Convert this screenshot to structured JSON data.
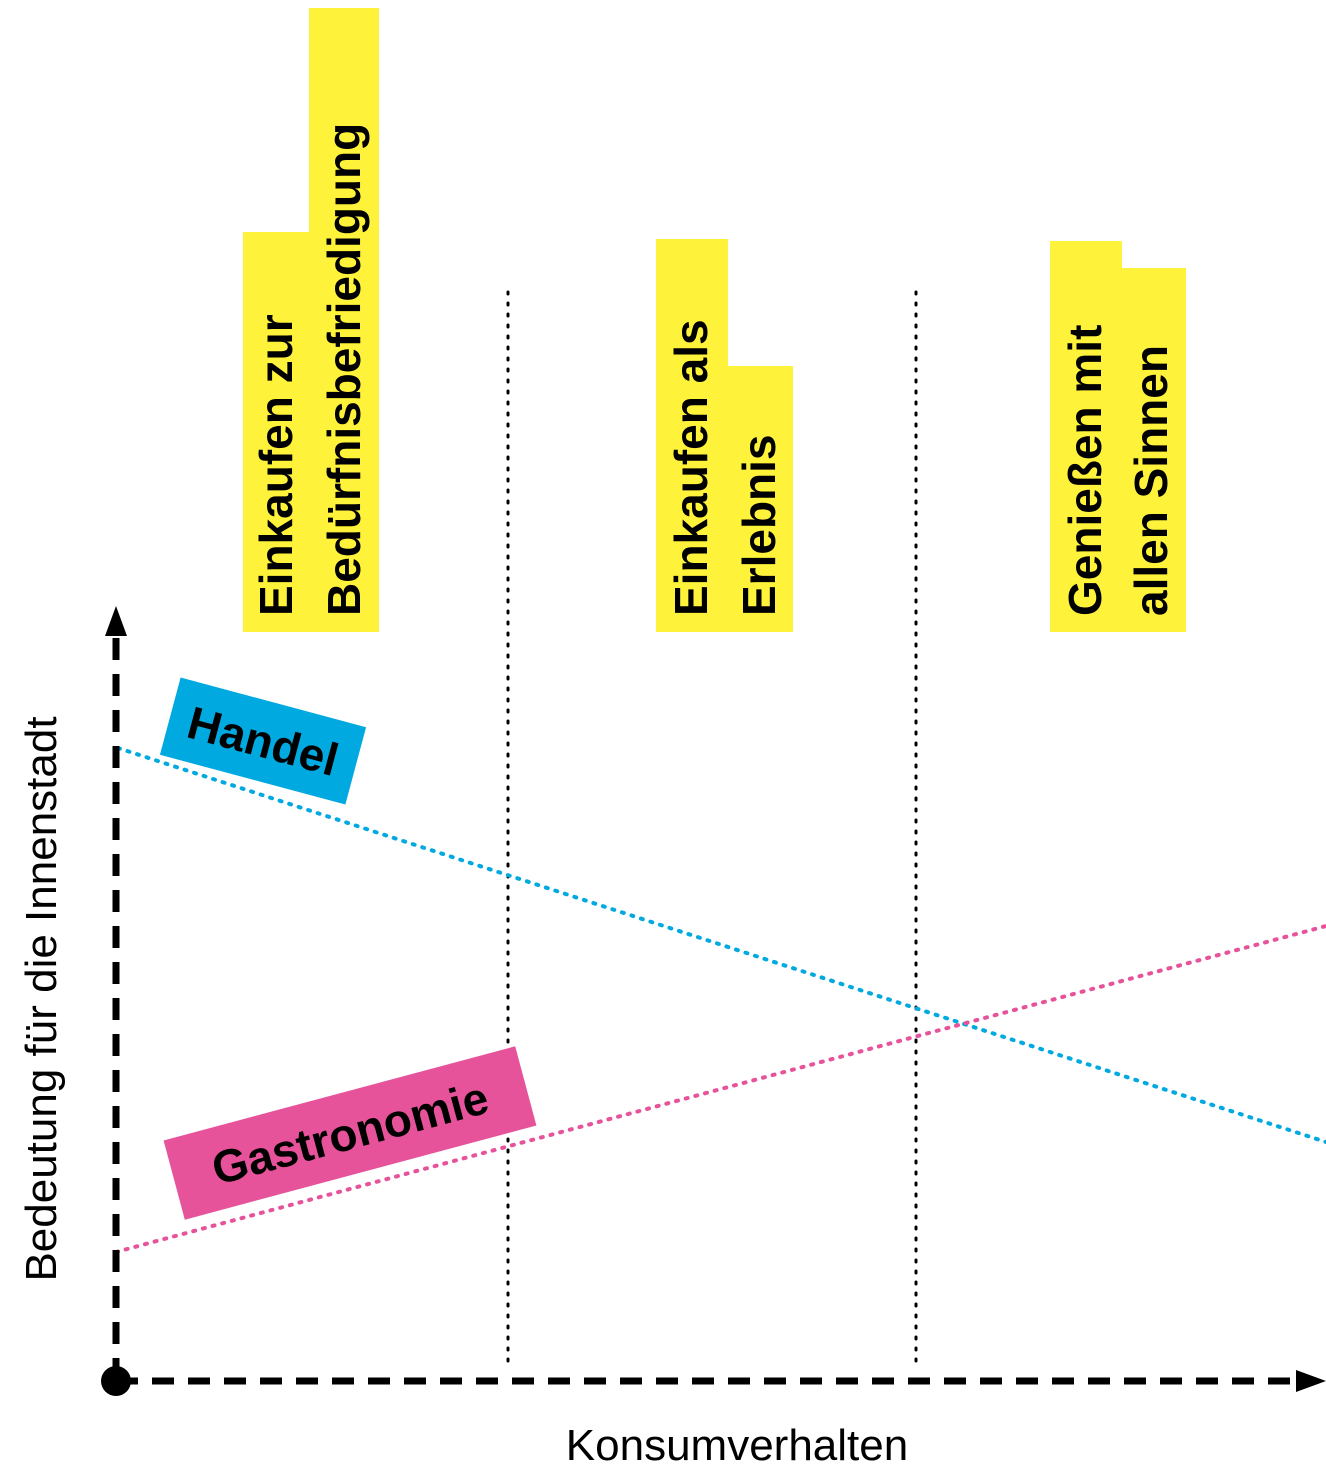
{
  "axes": {
    "x_label": "Konsumverhalten",
    "y_label": "Bedeutung für die Innenstadt"
  },
  "categories": [
    {
      "line1": "Einkaufen zur",
      "line2": "Bedürfnisbefriedigung"
    },
    {
      "line1": "Einkaufen als",
      "line2": "Erlebnis"
    },
    {
      "line1": "Genießen mit",
      "line2": "allen Sinnen"
    }
  ],
  "series": [
    {
      "name": "Handel",
      "color": "#00a9e0",
      "trend": "decreasing"
    },
    {
      "name": "Gastronomie",
      "color": "#e6539b",
      "trend": "increasing"
    }
  ],
  "colors": {
    "highlight": "#fff23a",
    "axis": "#000000"
  }
}
